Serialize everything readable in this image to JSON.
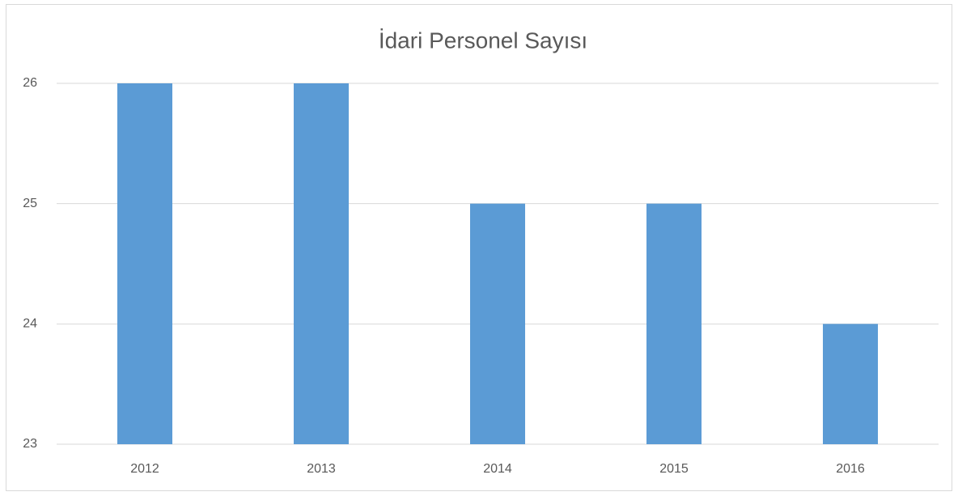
{
  "chart_data": {
    "type": "bar",
    "title": "İdari Personel Sayısı",
    "categories": [
      "2012",
      "2013",
      "2014",
      "2015",
      "2016"
    ],
    "values": [
      26,
      26,
      25,
      25,
      24
    ],
    "color": "#5b9bd5",
    "ylim": [
      23,
      26
    ],
    "yticks": [
      23,
      24,
      25,
      26
    ],
    "grid": true
  }
}
